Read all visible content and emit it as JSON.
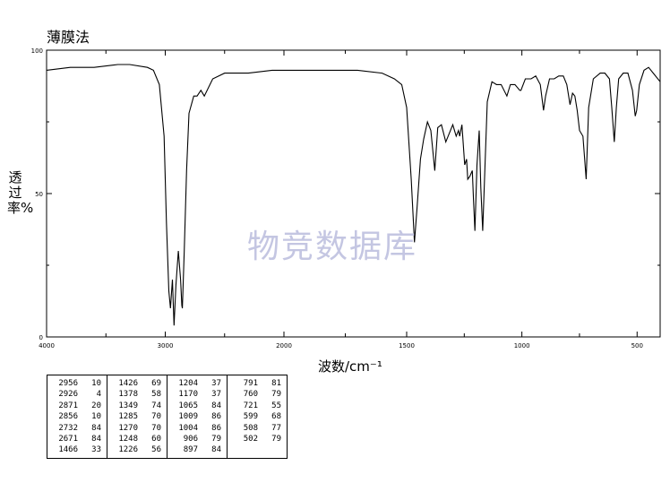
{
  "title": "薄膜法",
  "watermark": "物竞数据库",
  "chart_data": {
    "type": "line",
    "title": "薄膜法",
    "xlabel": "波数/cm⁻¹",
    "ylabel": "透过率%",
    "xlim": [
      4000,
      400
    ],
    "ylim": [
      0,
      100
    ],
    "x_ticks": [
      "4000",
      "3000",
      "2000",
      "1500",
      "1000",
      "500"
    ],
    "y_ticks": [
      "0",
      "50",
      "100"
    ],
    "series": [
      {
        "x": [
          4000,
          3800,
          3600,
          3400,
          3300,
          3150,
          3100,
          3050,
          3010,
          2990,
          2970,
          2956,
          2940,
          2926,
          2910,
          2890,
          2871,
          2860,
          2856,
          2840,
          2820,
          2800,
          2760,
          2732,
          2700,
          2671,
          2600,
          2500,
          2300,
          2100,
          1900,
          1700,
          1600,
          1550,
          1520,
          1500,
          1480,
          1466,
          1455,
          1440,
          1426,
          1410,
          1395,
          1378,
          1365,
          1349,
          1330,
          1310,
          1300,
          1285,
          1275,
          1270,
          1260,
          1248,
          1240,
          1235,
          1226,
          1215,
          1210,
          1204,
          1195,
          1185,
          1178,
          1170,
          1160,
          1150,
          1130,
          1110,
          1090,
          1065,
          1050,
          1030,
          1009,
          1004,
          985,
          960,
          940,
          920,
          906,
          897,
          880,
          860,
          840,
          820,
          805,
          791,
          780,
          770,
          760,
          750,
          735,
          721,
          710,
          690,
          660,
          640,
          620,
          610,
          599,
          590,
          580,
          560,
          540,
          520,
          508,
          502,
          490,
          470,
          450,
          430,
          400
        ],
        "y": [
          93,
          94,
          94,
          95,
          95,
          94,
          93,
          88,
          70,
          40,
          16,
          10,
          20,
          4,
          18,
          30,
          20,
          11,
          10,
          30,
          58,
          78,
          84,
          84,
          86,
          84,
          90,
          92,
          92,
          93,
          93,
          93,
          92,
          90,
          88,
          80,
          55,
          33,
          45,
          62,
          69,
          75,
          72,
          58,
          73,
          74,
          68,
          72,
          74,
          70,
          72,
          70,
          74,
          60,
          62,
          55,
          56,
          58,
          48,
          37,
          60,
          72,
          52,
          37,
          60,
          82,
          89,
          88,
          88,
          84,
          88,
          88,
          86,
          86,
          90,
          90,
          91,
          88,
          79,
          84,
          90,
          90,
          91,
          91,
          88,
          81,
          85,
          84,
          79,
          72,
          70,
          55,
          80,
          90,
          92,
          92,
          90,
          80,
          68,
          80,
          90,
          92,
          92,
          86,
          77,
          79,
          88,
          93,
          94,
          92,
          89
        ]
      }
    ],
    "peaks": [
      {
        "wn": "2956",
        "t": "10"
      },
      {
        "wn": "2926",
        "t": "4"
      },
      {
        "wn": "2871",
        "t": "20"
      },
      {
        "wn": "2856",
        "t": "10"
      },
      {
        "wn": "2732",
        "t": "84"
      },
      {
        "wn": "2671",
        "t": "84"
      },
      {
        "wn": "1466",
        "t": "33"
      },
      {
        "wn": "1426",
        "t": "69"
      },
      {
        "wn": "1378",
        "t": "58"
      },
      {
        "wn": "1349",
        "t": "74"
      },
      {
        "wn": "1285",
        "t": "70"
      },
      {
        "wn": "1270",
        "t": "70"
      },
      {
        "wn": "1248",
        "t": "60"
      },
      {
        "wn": "1226",
        "t": "56"
      },
      {
        "wn": "1204",
        "t": "37"
      },
      {
        "wn": "1170",
        "t": "37"
      },
      {
        "wn": "1065",
        "t": "84"
      },
      {
        "wn": "1009",
        "t": "86"
      },
      {
        "wn": "1004",
        "t": "86"
      },
      {
        "wn": "906",
        "t": "79"
      },
      {
        "wn": "897",
        "t": "84"
      },
      {
        "wn": "791",
        "t": "81"
      },
      {
        "wn": "760",
        "t": "79"
      },
      {
        "wn": "721",
        "t": "55"
      },
      {
        "wn": "599",
        "t": "68"
      },
      {
        "wn": "508",
        "t": "77"
      },
      {
        "wn": "502",
        "t": "79"
      }
    ]
  }
}
